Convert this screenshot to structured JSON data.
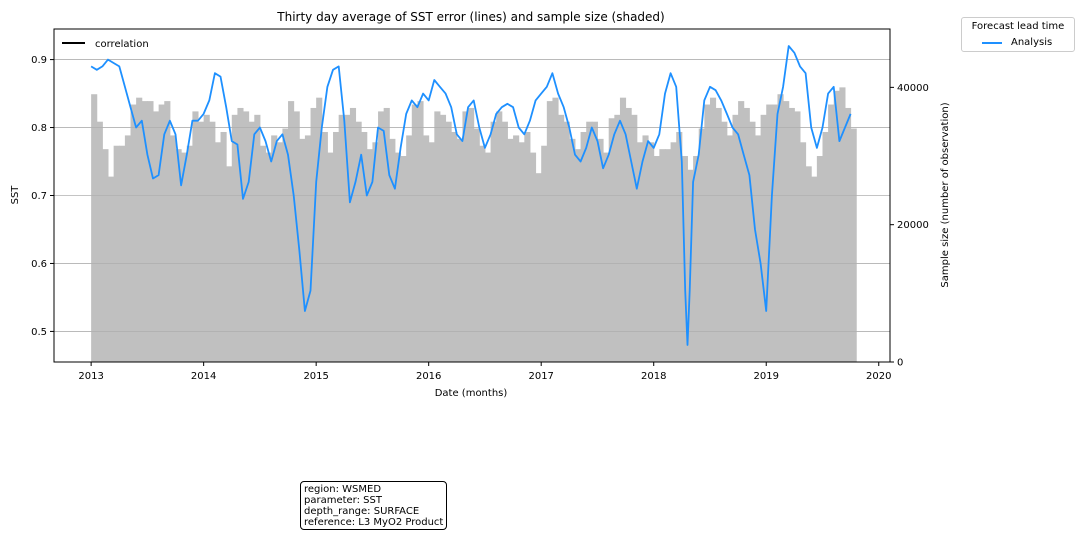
{
  "chart_data": {
    "type": "line",
    "title": "Thirty day average of SST error (lines) and sample size (shaded)",
    "xlabel": "Date (months)",
    "ylabel": "SST",
    "y2label": "Sample size (number of observation)",
    "xlim": [
      2012.67,
      2020.1
    ],
    "ylim": [
      0.455,
      0.945
    ],
    "y2lim": [
      0,
      48500
    ],
    "x_ticks": [
      "2013",
      "2014",
      "2015",
      "2016",
      "2017",
      "2018",
      "2019",
      "2020"
    ],
    "y_ticks": [
      0.5,
      0.6,
      0.7,
      0.8,
      0.9
    ],
    "y2_ticks": [
      0,
      20000,
      40000
    ],
    "y_grid": true,
    "inner_legend": {
      "label": "correlation",
      "color": "#000000",
      "position": "upper left"
    },
    "outer_legend": {
      "title": "Forecast lead time",
      "entries": [
        "Analysis"
      ],
      "position": "outside upper right"
    },
    "series": [
      {
        "name": "Analysis",
        "color": "#1e90ff",
        "x": [
          2013.0,
          2013.05,
          2013.1,
          2013.15,
          2013.2,
          2013.25,
          2013.3,
          2013.35,
          2013.4,
          2013.45,
          2013.5,
          2013.55,
          2013.6,
          2013.65,
          2013.7,
          2013.75,
          2013.8,
          2013.85,
          2013.9,
          2013.95,
          2014.0,
          2014.05,
          2014.1,
          2014.15,
          2014.2,
          2014.25,
          2014.3,
          2014.35,
          2014.4,
          2014.45,
          2014.5,
          2014.55,
          2014.6,
          2014.65,
          2014.7,
          2014.75,
          2014.8,
          2014.85,
          2014.9,
          2014.95,
          2015.0,
          2015.05,
          2015.1,
          2015.15,
          2015.2,
          2015.25,
          2015.3,
          2015.35,
          2015.4,
          2015.45,
          2015.5,
          2015.55,
          2015.6,
          2015.65,
          2015.7,
          2015.75,
          2015.8,
          2015.85,
          2015.9,
          2015.95,
          2016.0,
          2016.05,
          2016.1,
          2016.15,
          2016.2,
          2016.25,
          2016.3,
          2016.35,
          2016.4,
          2016.45,
          2016.5,
          2016.55,
          2016.6,
          2016.65,
          2016.7,
          2016.75,
          2016.8,
          2016.85,
          2016.9,
          2016.95,
          2017.0,
          2017.05,
          2017.1,
          2017.15,
          2017.2,
          2017.25,
          2017.3,
          2017.35,
          2017.4,
          2017.45,
          2017.5,
          2017.55,
          2017.6,
          2017.65,
          2017.7,
          2017.75,
          2017.8,
          2017.85,
          2017.9,
          2017.95,
          2018.0,
          2018.05,
          2018.1,
          2018.15,
          2018.2,
          2018.25,
          2018.28,
          2018.3,
          2018.32,
          2018.35,
          2018.4,
          2018.45,
          2018.5,
          2018.55,
          2018.6,
          2018.65,
          2018.7,
          2018.75,
          2018.8,
          2018.85,
          2018.9,
          2018.95,
          2019.0,
          2019.05,
          2019.1,
          2019.15,
          2019.2,
          2019.25,
          2019.3,
          2019.35,
          2019.4,
          2019.45,
          2019.5,
          2019.55,
          2019.6,
          2019.65,
          2019.7,
          2019.75
        ],
        "y": [
          0.89,
          0.885,
          0.89,
          0.9,
          0.895,
          0.89,
          0.86,
          0.83,
          0.8,
          0.81,
          0.76,
          0.725,
          0.73,
          0.79,
          0.81,
          0.79,
          0.715,
          0.76,
          0.81,
          0.81,
          0.82,
          0.84,
          0.88,
          0.875,
          0.83,
          0.78,
          0.775,
          0.695,
          0.72,
          0.79,
          0.8,
          0.78,
          0.75,
          0.78,
          0.79,
          0.76,
          0.7,
          0.62,
          0.53,
          0.56,
          0.72,
          0.8,
          0.86,
          0.885,
          0.89,
          0.81,
          0.69,
          0.72,
          0.76,
          0.7,
          0.72,
          0.8,
          0.795,
          0.73,
          0.71,
          0.77,
          0.82,
          0.84,
          0.83,
          0.85,
          0.84,
          0.87,
          0.86,
          0.85,
          0.83,
          0.79,
          0.78,
          0.83,
          0.84,
          0.8,
          0.77,
          0.79,
          0.82,
          0.83,
          0.835,
          0.83,
          0.8,
          0.79,
          0.81,
          0.84,
          0.85,
          0.86,
          0.88,
          0.85,
          0.83,
          0.8,
          0.76,
          0.75,
          0.77,
          0.8,
          0.78,
          0.74,
          0.76,
          0.79,
          0.81,
          0.79,
          0.75,
          0.71,
          0.75,
          0.78,
          0.77,
          0.79,
          0.85,
          0.88,
          0.86,
          0.75,
          0.56,
          0.48,
          0.56,
          0.72,
          0.76,
          0.84,
          0.86,
          0.855,
          0.84,
          0.82,
          0.8,
          0.79,
          0.76,
          0.73,
          0.65,
          0.6,
          0.53,
          0.7,
          0.82,
          0.86,
          0.92,
          0.91,
          0.89,
          0.88,
          0.8,
          0.77,
          0.8,
          0.85,
          0.86,
          0.78,
          0.8,
          0.82
        ]
      }
    ],
    "sample_size": {
      "name": "sample size",
      "color": "#c0c0c0",
      "x": [
        2013.0,
        2013.05,
        2013.1,
        2013.15,
        2013.2,
        2013.25,
        2013.3,
        2013.35,
        2013.4,
        2013.45,
        2013.5,
        2013.55,
        2013.6,
        2013.65,
        2013.7,
        2013.75,
        2013.8,
        2013.85,
        2013.9,
        2013.95,
        2014.0,
        2014.05,
        2014.1,
        2014.15,
        2014.2,
        2014.25,
        2014.3,
        2014.35,
        2014.4,
        2014.45,
        2014.5,
        2014.55,
        2014.6,
        2014.65,
        2014.7,
        2014.75,
        2014.8,
        2014.85,
        2014.9,
        2014.95,
        2015.0,
        2015.05,
        2015.1,
        2015.15,
        2015.2,
        2015.25,
        2015.3,
        2015.35,
        2015.4,
        2015.45,
        2015.5,
        2015.55,
        2015.6,
        2015.65,
        2015.7,
        2015.75,
        2015.8,
        2015.85,
        2015.9,
        2015.95,
        2016.0,
        2016.05,
        2016.1,
        2016.15,
        2016.2,
        2016.25,
        2016.3,
        2016.35,
        2016.4,
        2016.45,
        2016.5,
        2016.55,
        2016.6,
        2016.65,
        2016.7,
        2016.75,
        2016.8,
        2016.85,
        2016.9,
        2016.95,
        2017.0,
        2017.05,
        2017.1,
        2017.15,
        2017.2,
        2017.25,
        2017.3,
        2017.35,
        2017.4,
        2017.45,
        2017.5,
        2017.55,
        2017.6,
        2017.65,
        2017.7,
        2017.75,
        2017.8,
        2017.85,
        2017.9,
        2017.95,
        2018.0,
        2018.05,
        2018.1,
        2018.15,
        2018.2,
        2018.25,
        2018.3,
        2018.35,
        2018.4,
        2018.45,
        2018.5,
        2018.55,
        2018.6,
        2018.65,
        2018.7,
        2018.75,
        2018.8,
        2018.85,
        2018.9,
        2018.95,
        2019.0,
        2019.05,
        2019.1,
        2019.15,
        2019.2,
        2019.25,
        2019.3,
        2019.35,
        2019.4,
        2019.45,
        2019.5,
        2019.55,
        2019.6,
        2019.65,
        2019.7,
        2019.75
      ],
      "y": [
        39000,
        35000,
        31000,
        27000,
        31500,
        31500,
        33000,
        37500,
        38500,
        38000,
        38000,
        36500,
        37500,
        38000,
        33000,
        31000,
        30500,
        31500,
        36500,
        35000,
        36000,
        35000,
        32000,
        33500,
        28500,
        36000,
        37000,
        36500,
        35000,
        36000,
        31500,
        30500,
        33000,
        32000,
        34000,
        38000,
        36500,
        32500,
        33000,
        37000,
        38500,
        33500,
        30500,
        33500,
        36000,
        36000,
        37000,
        35000,
        33500,
        31000,
        32000,
        36500,
        37000,
        32500,
        30500,
        30000,
        33000,
        37500,
        38000,
        33000,
        32000,
        36500,
        36000,
        35000,
        33500,
        32500,
        36500,
        37000,
        34000,
        31500,
        30500,
        35000,
        36500,
        35000,
        32500,
        33000,
        32000,
        33500,
        30500,
        27500,
        31500,
        38000,
        38500,
        36000,
        35000,
        32500,
        31000,
        33500,
        35000,
        35000,
        32500,
        30500,
        35500,
        36000,
        38500,
        37000,
        36000,
        32000,
        33000,
        32000,
        30000,
        31000,
        31000,
        32000,
        33500,
        30000,
        28000,
        30000,
        34000,
        37500,
        38500,
        37000,
        35000,
        33000,
        36000,
        38000,
        37000,
        35000,
        33000,
        36000,
        37500,
        37500,
        39000,
        38000,
        37000,
        36500,
        32000,
        28500,
        27000,
        30000,
        33500,
        37500,
        39500,
        40000,
        37000,
        34000
      ]
    }
  },
  "legend_title": "Forecast lead time",
  "legend_label": "Analysis",
  "info_box": {
    "lines": [
      "region: WSMED",
      "parameter: SST",
      "depth_range: SURFACE",
      "reference: L3 MyO2 Product"
    ]
  }
}
